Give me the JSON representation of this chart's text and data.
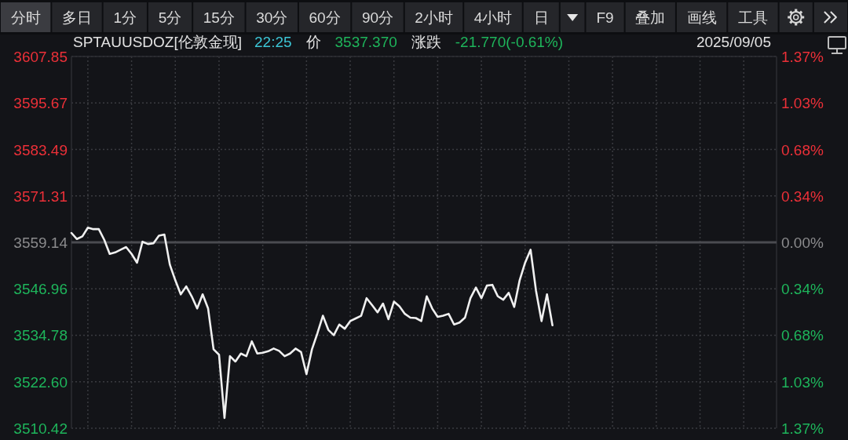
{
  "chart_data": [
    {
      "type": "other",
      "annotations": [
        "分时",
        "多日",
        "1分",
        "5分",
        "15分",
        "30分",
        "60分",
        "90分",
        "2小时",
        "4小时",
        "日",
        "F9",
        "叠加",
        "画线",
        "工具"
      ]
    },
    {
      "type": "line",
      "title": "SPTAUUSDOZ[伦敦金现]",
      "annotations": [
        "22:25",
        "价",
        "3537.370",
        "涨跌",
        "-21.770(-0.61%)",
        "2025/09/05"
      ],
      "categories": [
        null,
        null,
        null,
        null,
        null,
        null,
        null,
        null,
        null,
        null,
        null,
        null,
        null,
        null,
        null,
        null,
        null,
        null,
        null,
        null,
        null,
        null,
        null,
        null,
        null,
        null,
        null,
        null,
        null,
        null,
        null,
        null,
        null,
        null,
        null,
        null,
        null,
        null,
        null,
        null,
        null,
        null,
        null,
        null,
        null,
        null,
        null,
        null,
        null,
        null,
        null,
        null,
        null,
        null,
        null,
        null,
        null,
        null,
        null,
        null,
        null,
        null,
        null,
        null,
        null,
        null,
        null,
        null,
        null,
        null,
        null,
        null,
        null,
        null,
        null,
        null,
        null,
        null,
        null,
        null,
        null,
        null,
        null,
        null,
        null,
        null,
        null,
        null,
        null,
        null,
        null,
        null,
        null,
        null,
        null,
        null,
        null,
        null,
        null,
        null,
        null,
        null,
        null,
        null,
        null,
        null,
        null,
        null,
        null,
        null,
        null,
        null,
        null,
        null,
        null,
        null,
        null,
        null,
        null,
        null,
        null,
        null,
        null,
        null,
        null,
        null,
        null,
        null,
        null,
        null
      ],
      "series": [
        {
          "color": "#f0f0f0",
          "values": [
            3561.6,
            3560.0,
            3560.7,
            3563.0,
            3562.6,
            3562.6,
            3559.8,
            3556.1,
            3556.5,
            3557.2,
            3557.9,
            3556.1,
            3553.8,
            3559.3,
            3558.7,
            3558.9,
            3560.9,
            3561.2,
            3553.3,
            3549.2,
            3545.5,
            3547.6,
            3545.0,
            3541.8,
            3545.5,
            3541.8,
            3531.1,
            3529.7,
            3513.1,
            3529.3,
            3527.9,
            3530.0,
            3529.3,
            3533.2,
            3530.0,
            3530.2,
            3530.6,
            3531.3,
            3530.7,
            3529.3,
            3530.0,
            3531.3,
            3530.4,
            3524.6,
            3531.1,
            3535.3,
            3539.9,
            3536.2,
            3534.8,
            3537.6,
            3536.5,
            3538.5,
            3539.2,
            3539.9,
            3544.5,
            3542.7,
            3540.8,
            3543.1,
            3539.0,
            3543.6,
            3542.4,
            3540.4,
            3539.4,
            3539.3,
            3538.5,
            3545.0,
            3541.8,
            3539.6,
            3539.9,
            3540.4,
            3537.6,
            3538.1,
            3539.4,
            3544.5,
            3547.3,
            3544.5,
            3547.8,
            3548.0,
            3545.0,
            3544.1,
            3545.9,
            3542.2,
            3549.2,
            3553.8,
            3557.2,
            3546.4,
            3538.5,
            3545.5,
            3537.4,
            null,
            null,
            null,
            null,
            null,
            null,
            null,
            null,
            null,
            null,
            null,
            null,
            null,
            null,
            null,
            null,
            null,
            null,
            null,
            null,
            null,
            null,
            null,
            null,
            null,
            null,
            null,
            null,
            null,
            null,
            null,
            null,
            null,
            null,
            null,
            null,
            null,
            null,
            null,
            null,
            null
          ]
        }
      ],
      "ylim": [
        3510.42,
        3607.85
      ],
      "yticks": [
        3607.85,
        3595.67,
        3583.49,
        3571.31,
        3559.14,
        3546.96,
        3534.78,
        {
          "value": 3522.6,
          "label": "3522.60"
        },
        3510.42
      ],
      "y2lim": [
        -1.37,
        1.37
      ],
      "y2ticks": [
        {
          "value": 1.37,
          "label": "1.37%"
        },
        {
          "value": 1.03,
          "label": "1.03%"
        },
        {
          "value": 0.68,
          "label": "0.68%"
        },
        {
          "value": 0.34,
          "label": "0.34%"
        },
        {
          "value": 0,
          "label": "0.00%"
        },
        {
          "value": -0.34,
          "label": "0.34%"
        },
        {
          "value": -0.68,
          "label": "0.68%"
        },
        {
          "value": -1.03,
          "label": "1.03%"
        },
        {
          "value": -1.37,
          "label": "1.37%"
        }
      ],
      "ref_lines": [
        {
          "axis": "y",
          "value": 3559.14,
          "color": "#4a4b50"
        }
      ],
      "grid": true
    }
  ]
}
